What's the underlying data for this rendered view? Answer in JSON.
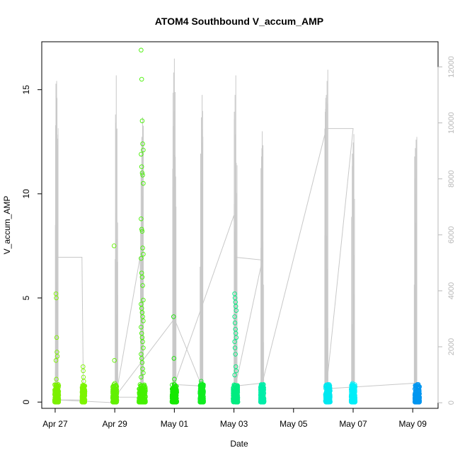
{
  "chart_data": {
    "type": "scatter",
    "title": "ATOM4 Southbound V_accum_AMP",
    "xlabel": "Date",
    "ylabel": "V_accum_AMP",
    "x_ticks": [
      "Apr 27",
      "Apr 29",
      "May 01",
      "May 03",
      "May 05",
      "May 07",
      "May 09"
    ],
    "x_tick_days": [
      0,
      2,
      4,
      6,
      8,
      10,
      12
    ],
    "xlim_days": [
      -0.45,
      12.85
    ],
    "y_ticks": [
      0,
      5,
      10,
      15
    ],
    "ylim": [
      -0.3,
      17.3
    ],
    "y2_ticks": [
      0,
      2000,
      4000,
      6000,
      8000,
      10000,
      12000
    ],
    "y2lim": [
      -200,
      12900
    ],
    "colors": {
      "secondary": "#c8c8c8",
      "secondary_axis": "#b8b8b8"
    },
    "clusters": [
      {
        "day": 0.05,
        "span": 0.14,
        "color": "#7cf000",
        "outliers": [
          5.2,
          5.0,
          3.1,
          2.4,
          2.2,
          2.0,
          1.1
        ]
      },
      {
        "day": 0.95,
        "span": 0.1,
        "color": "#7df400",
        "outliers": [
          1.7,
          1.5,
          1.2,
          1.0
        ]
      },
      {
        "day": 2.0,
        "span": 0.14,
        "color": "#62f000",
        "outliers": [
          7.5,
          2.0,
          0.9
        ]
      },
      {
        "day": 2.92,
        "span": 0.22,
        "color": "#44f000",
        "outliers": [
          16.9,
          15.5,
          13.5,
          12.4,
          12.1,
          11.9,
          11.3,
          11.0,
          10.9,
          10.5,
          8.8,
          8.3,
          8.2,
          7.4,
          7.1,
          6.9,
          6.2,
          6.0,
          5.6,
          4.9,
          4.7,
          4.5,
          4.3,
          4.1,
          3.9,
          3.6,
          3.3,
          3.1,
          2.9,
          2.6,
          2.3,
          2.1,
          1.9,
          1.6,
          1.4,
          1.2
        ]
      },
      {
        "day": 4.0,
        "span": 0.16,
        "color": "#16e800",
        "outliers": [
          4.1,
          2.1,
          1.1
        ]
      },
      {
        "day": 4.92,
        "span": 0.12,
        "color": "#10ec20",
        "outliers": [
          1.0,
          0.9
        ]
      },
      {
        "day": 6.05,
        "span": 0.16,
        "color": "#00ec80",
        "outliers": [
          5.2,
          5.0,
          4.8,
          4.6,
          4.4,
          4.1,
          3.8,
          3.5,
          3.3,
          3.1,
          2.9,
          2.6,
          2.3,
          1.7,
          1.5,
          1.3
        ]
      },
      {
        "day": 6.95,
        "span": 0.12,
        "color": "#00eda8",
        "outliers": [
          0.5
        ]
      },
      {
        "day": 9.15,
        "span": 0.16,
        "color": "#00e8f0",
        "outliers": []
      },
      {
        "day": 10.0,
        "span": 0.14,
        "color": "#00eef8",
        "outliers": [
          0.9,
          0.6
        ]
      },
      {
        "day": 12.15,
        "span": 0.16,
        "color": "#0096f0",
        "outliers": [
          0.3
        ]
      }
    ],
    "secondary_bursts": [
      {
        "day": 0.05,
        "peaks": [
          11400,
          11500,
          9200
        ]
      },
      {
        "day": 2.05,
        "peaks": [
          10300,
          11700,
          9800
        ]
      },
      {
        "day": 2.92,
        "peaks": [
          8300,
          9500,
          10200,
          9900
        ]
      },
      {
        "day": 4.0,
        "peaks": [
          11800,
          12300,
          11100
        ]
      },
      {
        "day": 4.92,
        "peaks": [
          8900,
          10200,
          11000,
          9500
        ]
      },
      {
        "day": 6.05,
        "peaks": [
          10400,
          11000,
          11700,
          7500
        ]
      },
      {
        "day": 6.95,
        "peaks": [
          8800,
          9700,
          9200
        ]
      },
      {
        "day": 9.1,
        "peaks": [
          9800,
          10500,
          11000,
          11500,
          11900
        ]
      },
      {
        "day": 10.0,
        "peaks": [
          8900,
          9300,
          9600
        ]
      },
      {
        "day": 12.1,
        "peaks": [
          8800,
          9100,
          9400,
          9500
        ]
      }
    ],
    "secondary_path": [
      [
        0.0,
        0
      ],
      [
        0.05,
        5200
      ],
      [
        0.9,
        5200
      ],
      [
        0.95,
        100
      ],
      [
        0.05,
        100
      ],
      [
        2.0,
        0
      ],
      [
        2.85,
        5200
      ],
      [
        2.92,
        200
      ],
      [
        2.0,
        200
      ],
      [
        4.0,
        3000
      ],
      [
        4.92,
        600
      ],
      [
        4.0,
        650
      ],
      [
        6.0,
        6700
      ],
      [
        6.05,
        5200
      ],
      [
        6.95,
        5100
      ],
      [
        6.05,
        600
      ],
      [
        6.95,
        700
      ],
      [
        9.1,
        9800
      ],
      [
        10.0,
        9800
      ],
      [
        9.1,
        500
      ],
      [
        12.1,
        700
      ]
    ]
  }
}
